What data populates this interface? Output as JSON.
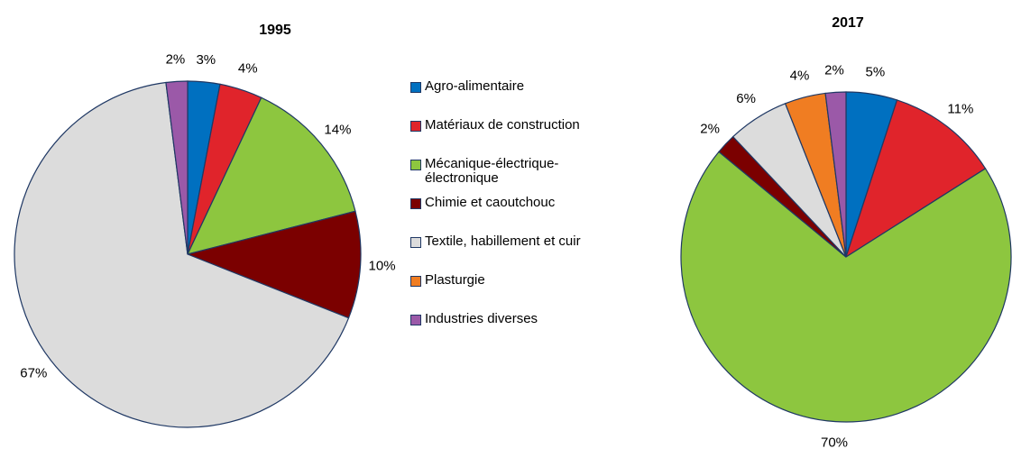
{
  "chart_data": [
    {
      "type": "pie",
      "title": "1995",
      "categories": [
        "Agro-alimentaire",
        "Matériaux de construction",
        "Mécanique-électrique-électronique",
        "Chimie et caoutchouc",
        "Textile, habillement et cuir",
        "Plasturgie",
        "Industries diverses"
      ],
      "values": [
        3,
        4,
        14,
        10,
        67,
        0,
        2
      ],
      "value_labels": [
        "3%",
        "4%",
        "14%",
        "10%",
        "67%",
        null,
        "2%"
      ],
      "colors": [
        "#0070c0",
        "#e0242b",
        "#8dc63f",
        "#7b0000",
        "#dcdcdc",
        "#f07d22",
        "#9b59a8"
      ]
    },
    {
      "type": "pie",
      "title": "2017",
      "categories": [
        "Agro-alimentaire",
        "Matériaux de construction",
        "Mécanique-électrique-électronique",
        "Chimie et caoutchouc",
        "Textile, habillement et cuir",
        "Plasturgie",
        "Industries diverses"
      ],
      "values": [
        5,
        11,
        70,
        2,
        6,
        4,
        2
      ],
      "value_labels": [
        "5%",
        "11%",
        "70%",
        "2%",
        "6%",
        "4%",
        "2%"
      ],
      "colors": [
        "#0070c0",
        "#e0242b",
        "#8dc63f",
        "#7b0000",
        "#dcdcdc",
        "#f07d22",
        "#9b59a8"
      ]
    }
  ]
}
